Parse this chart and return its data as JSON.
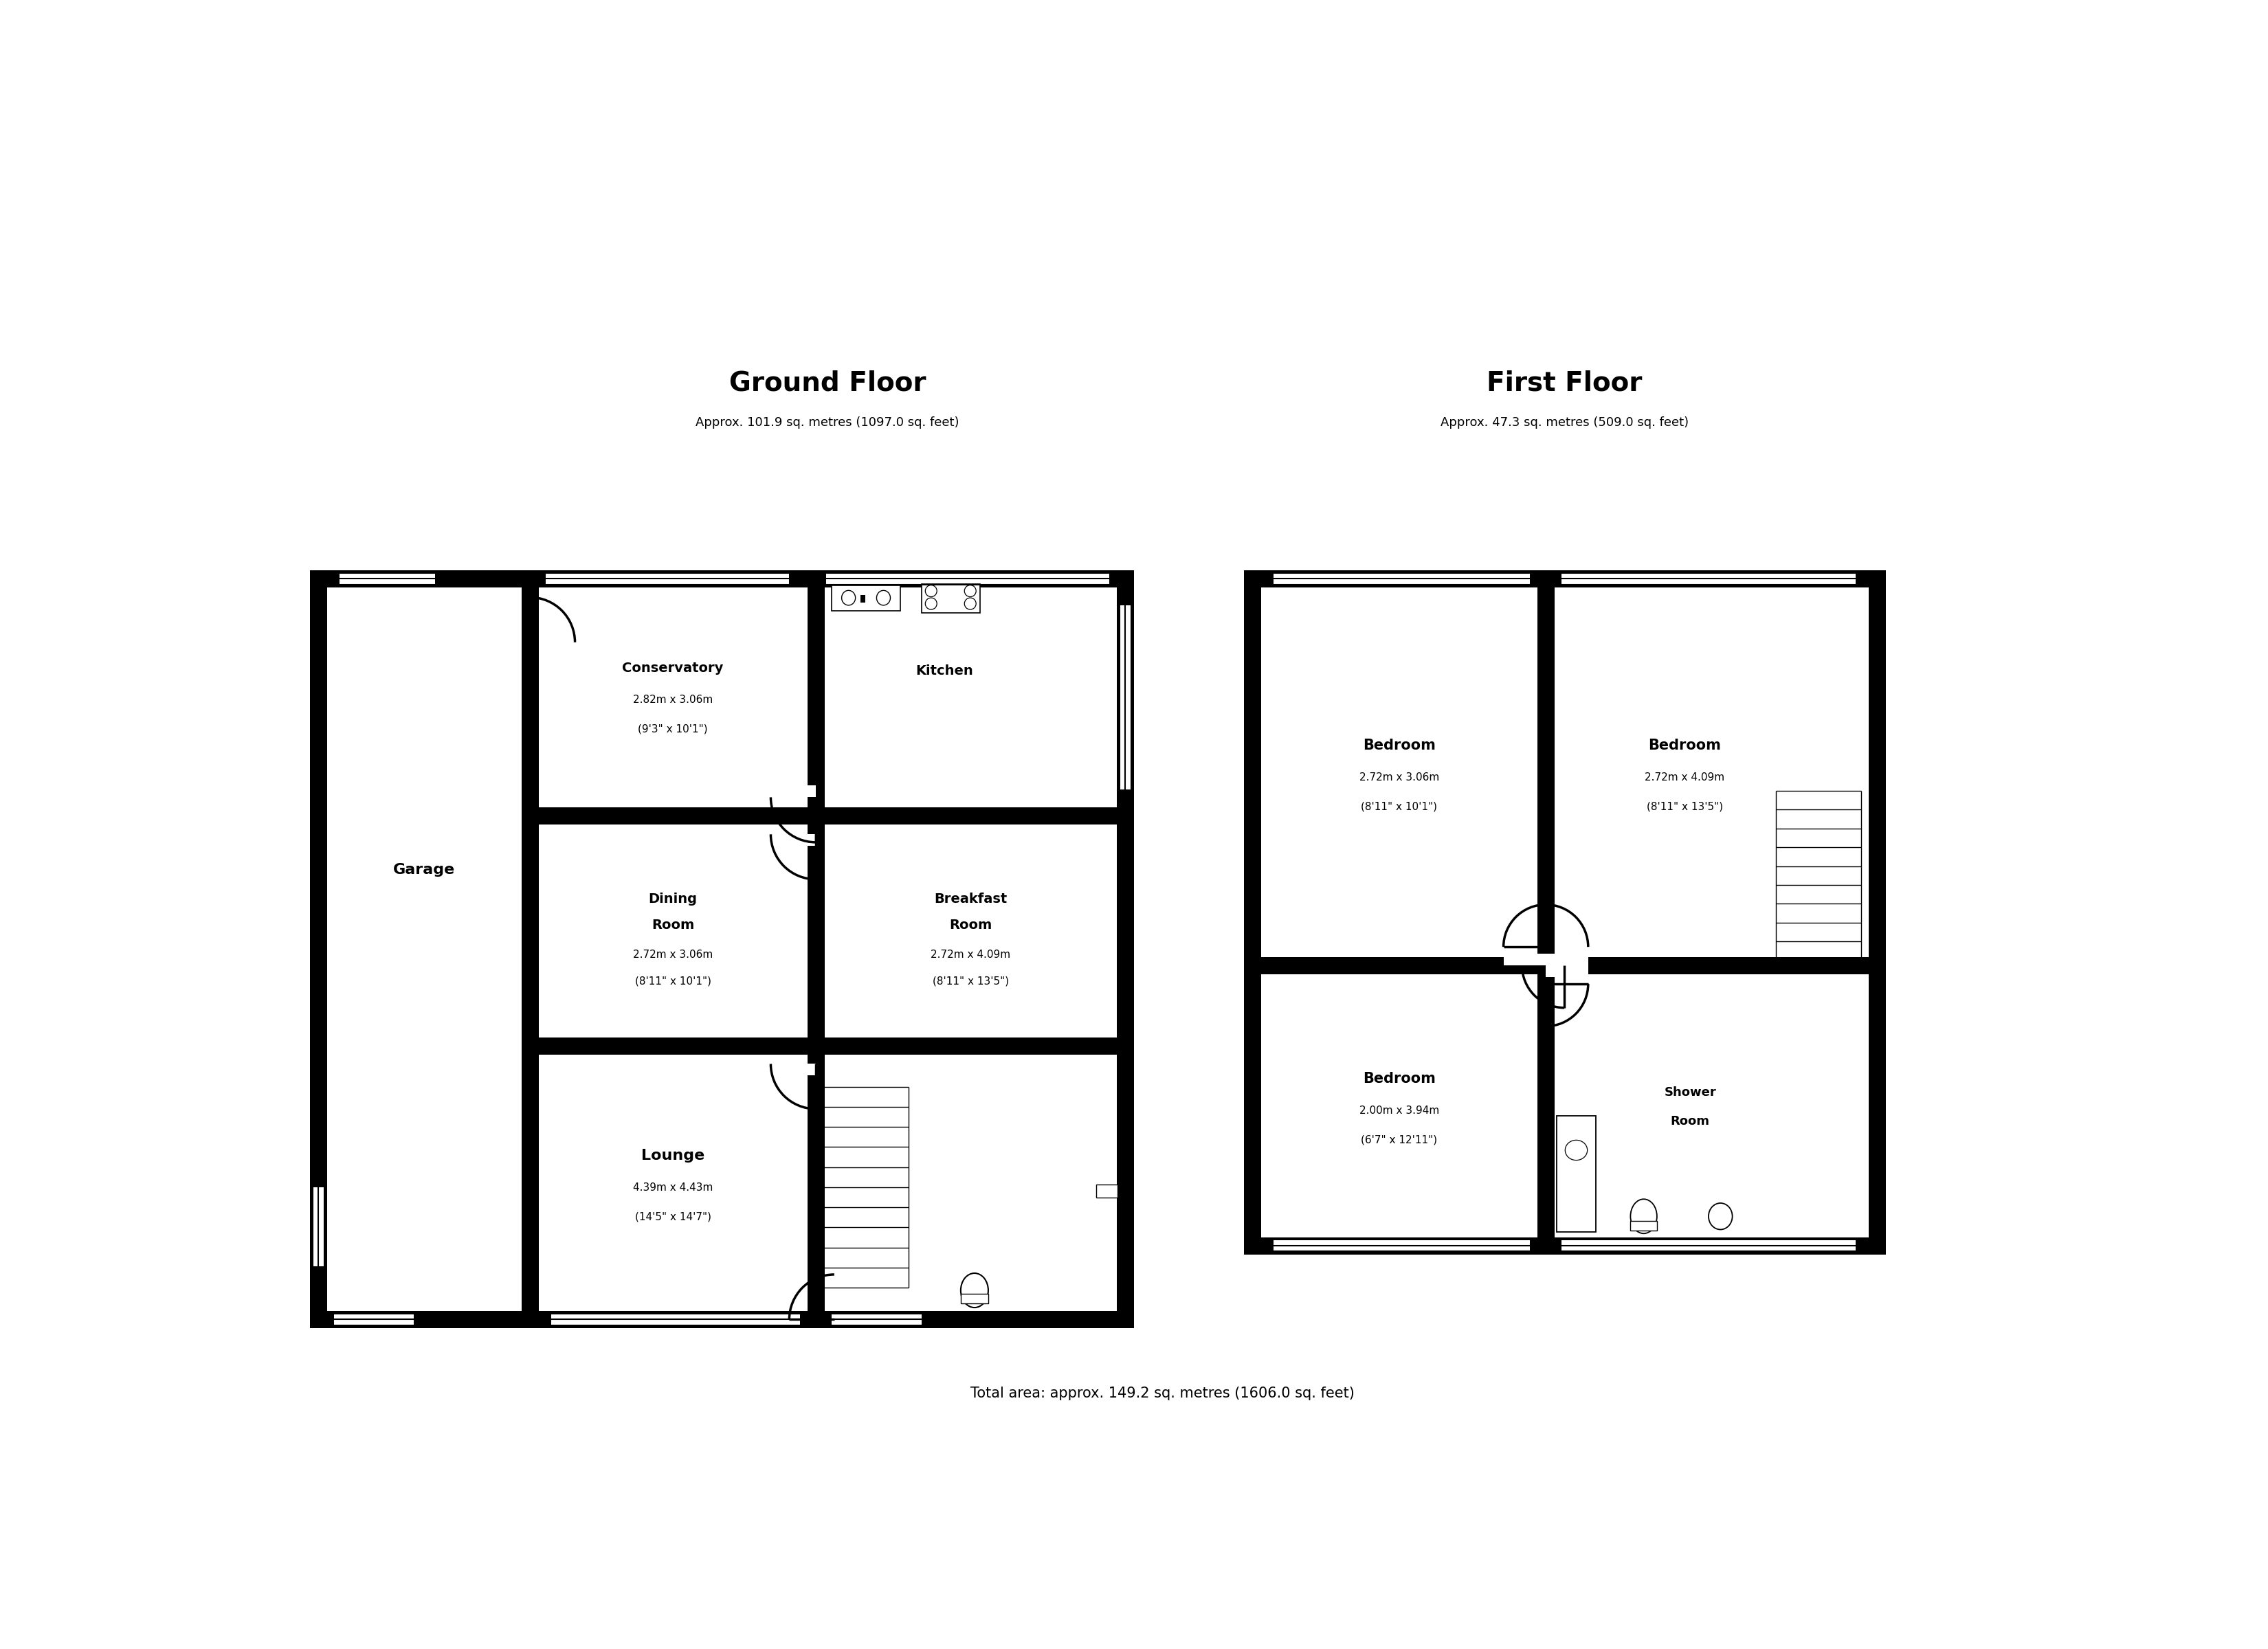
{
  "title_ground": "Ground Floor",
  "subtitle_ground": "Approx. 101.9 sq. metres (1097.0 sq. feet)",
  "title_first": "First Floor",
  "subtitle_first": "Approx. 47.3 sq. metres (509.0 sq. feet)",
  "total_area": "Total area: approx. 149.2 sq. metres (1606.0 sq. feet)",
  "bg_color": "#ffffff",
  "wall_color": "#000000",
  "wall_lw": 18,
  "thin_lw": 3,
  "door_lw": 2.5
}
